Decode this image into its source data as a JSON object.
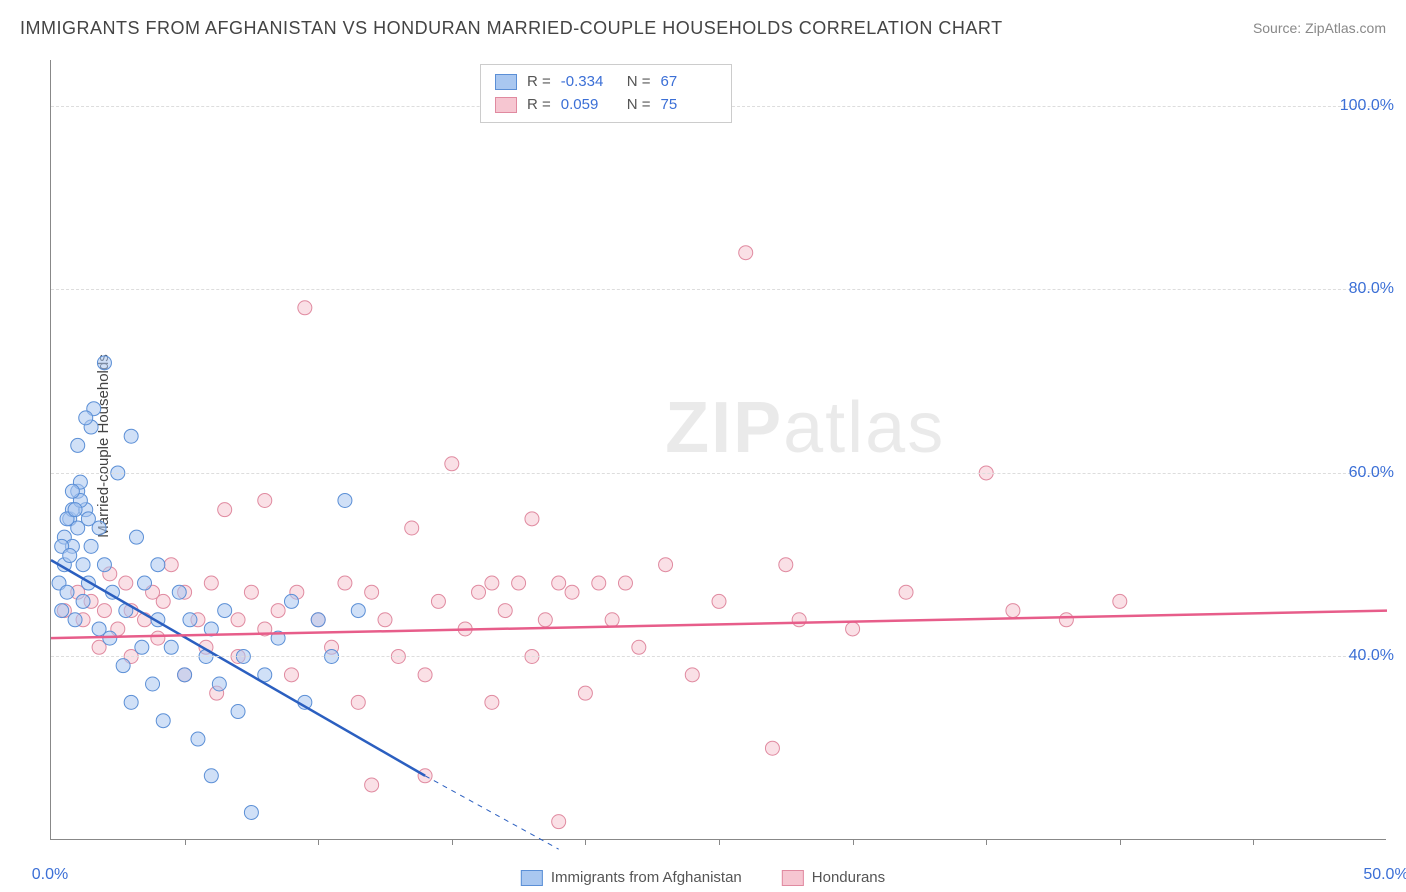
{
  "title": "IMMIGRANTS FROM AFGHANISTAN VS HONDURAN MARRIED-COUPLE HOUSEHOLDS CORRELATION CHART",
  "source": "Source: ZipAtlas.com",
  "ylabel": "Married-couple Households",
  "watermark_zip": "ZIP",
  "watermark_atlas": "atlas",
  "chart": {
    "type": "scatter",
    "xlim": [
      0,
      50
    ],
    "ylim": [
      20,
      105
    ],
    "x_ticks": [
      0,
      50
    ],
    "x_tick_labels": [
      "0.0%",
      "50.0%"
    ],
    "x_minor_ticks": [
      5,
      10,
      15,
      20,
      25,
      30,
      35,
      40,
      45
    ],
    "y_ticks": [
      40,
      60,
      80,
      100
    ],
    "y_tick_labels": [
      "40.0%",
      "60.0%",
      "80.0%",
      "100.0%"
    ],
    "background_color": "#ffffff",
    "grid_color": "#dddddd",
    "colors": {
      "series_a_fill": "#a9c7f0",
      "series_a_stroke": "#5b8fd6",
      "series_a_line": "#2b5fc0",
      "series_b_fill": "#f6c6d1",
      "series_b_stroke": "#e08aa0",
      "series_b_line": "#e75d8a",
      "tick_label": "#3b6fd6"
    },
    "marker_radius": 7,
    "marker_opacity": 0.55,
    "line_width": 2.5,
    "series_a": {
      "name": "Immigrants from Afghanistan",
      "R": "-0.334",
      "N": "67",
      "trend": {
        "x1": 0,
        "y1": 50.5,
        "x2": 14,
        "y2": 27,
        "dash_beyond_x": 14,
        "dash_x2": 19,
        "dash_y2": 19
      },
      "points": [
        [
          0.3,
          48
        ],
        [
          0.4,
          45
        ],
        [
          0.5,
          50
        ],
        [
          0.5,
          53
        ],
        [
          0.6,
          47
        ],
        [
          0.7,
          55
        ],
        [
          0.8,
          52
        ],
        [
          0.8,
          56
        ],
        [
          0.9,
          44
        ],
        [
          1.0,
          58
        ],
        [
          1.0,
          54
        ],
        [
          1.1,
          59
        ],
        [
          1.2,
          46
        ],
        [
          1.2,
          50
        ],
        [
          1.3,
          56
        ],
        [
          1.4,
          48
        ],
        [
          1.5,
          65
        ],
        [
          1.5,
          52
        ],
        [
          1.6,
          67
        ],
        [
          1.8,
          54
        ],
        [
          1.8,
          43
        ],
        [
          2.0,
          72
        ],
        [
          2.0,
          50
        ],
        [
          2.2,
          42
        ],
        [
          2.3,
          47
        ],
        [
          2.5,
          60
        ],
        [
          2.7,
          39
        ],
        [
          2.8,
          45
        ],
        [
          3.0,
          64
        ],
        [
          3.0,
          35
        ],
        [
          3.2,
          53
        ],
        [
          3.4,
          41
        ],
        [
          3.5,
          48
        ],
        [
          3.8,
          37
        ],
        [
          4.0,
          50
        ],
        [
          4.0,
          44
        ],
        [
          4.2,
          33
        ],
        [
          4.5,
          41
        ],
        [
          4.8,
          47
        ],
        [
          5.0,
          38
        ],
        [
          5.2,
          44
        ],
        [
          5.5,
          31
        ],
        [
          5.8,
          40
        ],
        [
          6.0,
          27
        ],
        [
          6.0,
          43
        ],
        [
          6.3,
          37
        ],
        [
          6.5,
          45
        ],
        [
          7.0,
          34
        ],
        [
          7.2,
          40
        ],
        [
          7.5,
          23
        ],
        [
          8.0,
          38
        ],
        [
          8.5,
          42
        ],
        [
          9.0,
          46
        ],
        [
          9.5,
          35
        ],
        [
          10.0,
          44
        ],
        [
          10.5,
          40
        ],
        [
          11.0,
          57
        ],
        [
          11.5,
          45
        ],
        [
          1.0,
          63
        ],
        [
          1.3,
          66
        ],
        [
          1.1,
          57
        ],
        [
          0.8,
          58
        ],
        [
          0.6,
          55
        ],
        [
          0.4,
          52
        ],
        [
          0.7,
          51
        ],
        [
          0.9,
          56
        ],
        [
          1.4,
          55
        ]
      ]
    },
    "series_b": {
      "name": "Hondurans",
      "R": "0.059",
      "N": "75",
      "trend": {
        "x1": 0,
        "y1": 42,
        "x2": 50,
        "y2": 45
      },
      "points": [
        [
          0.5,
          45
        ],
        [
          1.0,
          47
        ],
        [
          1.2,
          44
        ],
        [
          1.5,
          46
        ],
        [
          1.8,
          41
        ],
        [
          2.0,
          45
        ],
        [
          2.2,
          49
        ],
        [
          2.5,
          43
        ],
        [
          2.8,
          48
        ],
        [
          3.0,
          40
        ],
        [
          3.0,
          45
        ],
        [
          3.5,
          44
        ],
        [
          3.8,
          47
        ],
        [
          4.0,
          42
        ],
        [
          4.2,
          46
        ],
        [
          4.5,
          50
        ],
        [
          5.0,
          38
        ],
        [
          5.0,
          47
        ],
        [
          5.5,
          44
        ],
        [
          5.8,
          41
        ],
        [
          6.0,
          48
        ],
        [
          6.2,
          36
        ],
        [
          6.5,
          56
        ],
        [
          7.0,
          44
        ],
        [
          7.0,
          40
        ],
        [
          7.5,
          47
        ],
        [
          8.0,
          43
        ],
        [
          8.0,
          57
        ],
        [
          8.5,
          45
        ],
        [
          9.0,
          38
        ],
        [
          9.2,
          47
        ],
        [
          9.5,
          78
        ],
        [
          10.0,
          44
        ],
        [
          10.5,
          41
        ],
        [
          11.0,
          48
        ],
        [
          11.5,
          35
        ],
        [
          12.0,
          47
        ],
        [
          12.5,
          44
        ],
        [
          13.0,
          40
        ],
        [
          13.5,
          54
        ],
        [
          14.0,
          38
        ],
        [
          14.5,
          46
        ],
        [
          15.0,
          61
        ],
        [
          15.5,
          43
        ],
        [
          16.0,
          47
        ],
        [
          16.5,
          35
        ],
        [
          17.0,
          45
        ],
        [
          17.5,
          48
        ],
        [
          18.0,
          40
        ],
        [
          18.5,
          44
        ],
        [
          19.0,
          22
        ],
        [
          19.5,
          47
        ],
        [
          20.0,
          36
        ],
        [
          20.5,
          48
        ],
        [
          21.0,
          44
        ],
        [
          22.0,
          41
        ],
        [
          23.0,
          50
        ],
        [
          24.0,
          38
        ],
        [
          25.0,
          46
        ],
        [
          26.0,
          84
        ],
        [
          27.0,
          30
        ],
        [
          28.0,
          44
        ],
        [
          27.5,
          50
        ],
        [
          30.0,
          43
        ],
        [
          32.0,
          47
        ],
        [
          35.0,
          60
        ],
        [
          36.0,
          45
        ],
        [
          38.0,
          44
        ],
        [
          40.0,
          46
        ],
        [
          12.0,
          26
        ],
        [
          14.0,
          27
        ],
        [
          16.5,
          48
        ],
        [
          18.0,
          55
        ],
        [
          21.5,
          48
        ],
        [
          19.0,
          48
        ]
      ]
    }
  },
  "corr_box": {
    "R_label": "R =",
    "N_label": "N ="
  }
}
